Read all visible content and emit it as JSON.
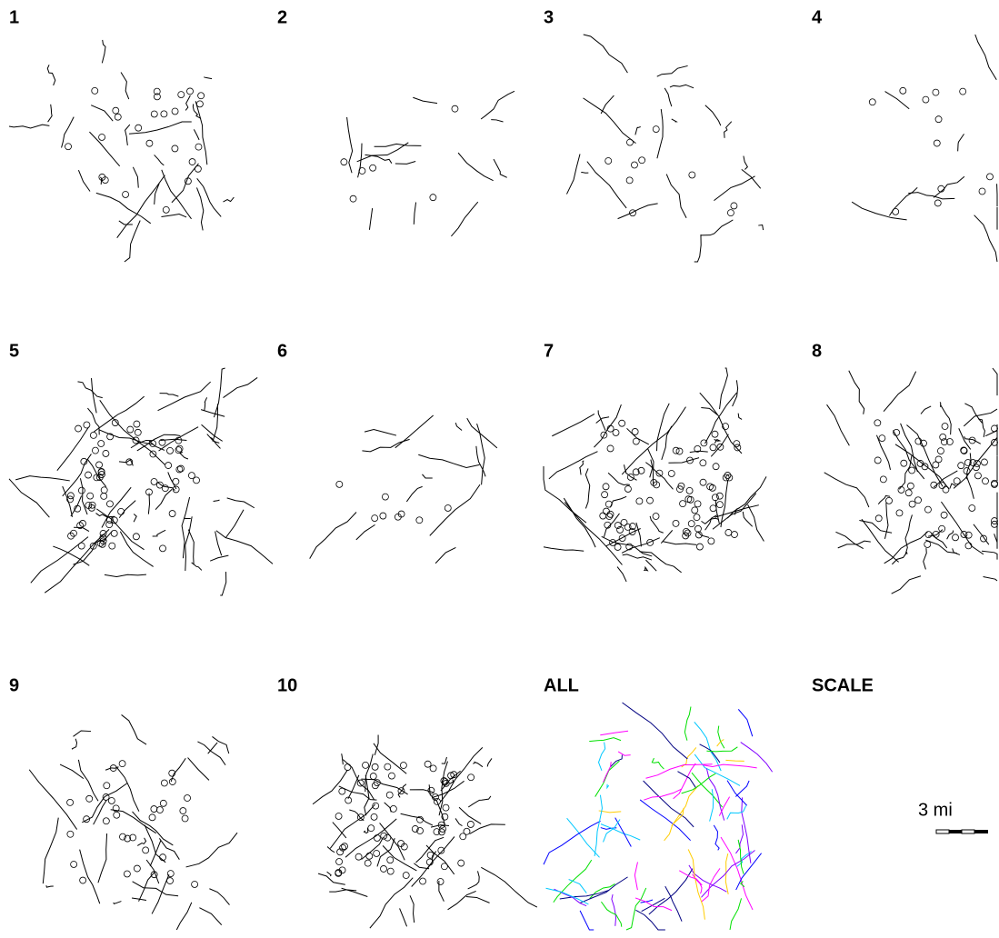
{
  "panels": [
    {
      "label": "1"
    },
    {
      "label": "2"
    },
    {
      "label": "3"
    },
    {
      "label": "4"
    },
    {
      "label": "5"
    },
    {
      "label": "6"
    },
    {
      "label": "7"
    },
    {
      "label": "8"
    },
    {
      "label": "9"
    },
    {
      "label": "10"
    },
    {
      "label": "ALL"
    },
    {
      "label": "SCALE"
    }
  ],
  "scale": {
    "label": "3 mi"
  }
}
